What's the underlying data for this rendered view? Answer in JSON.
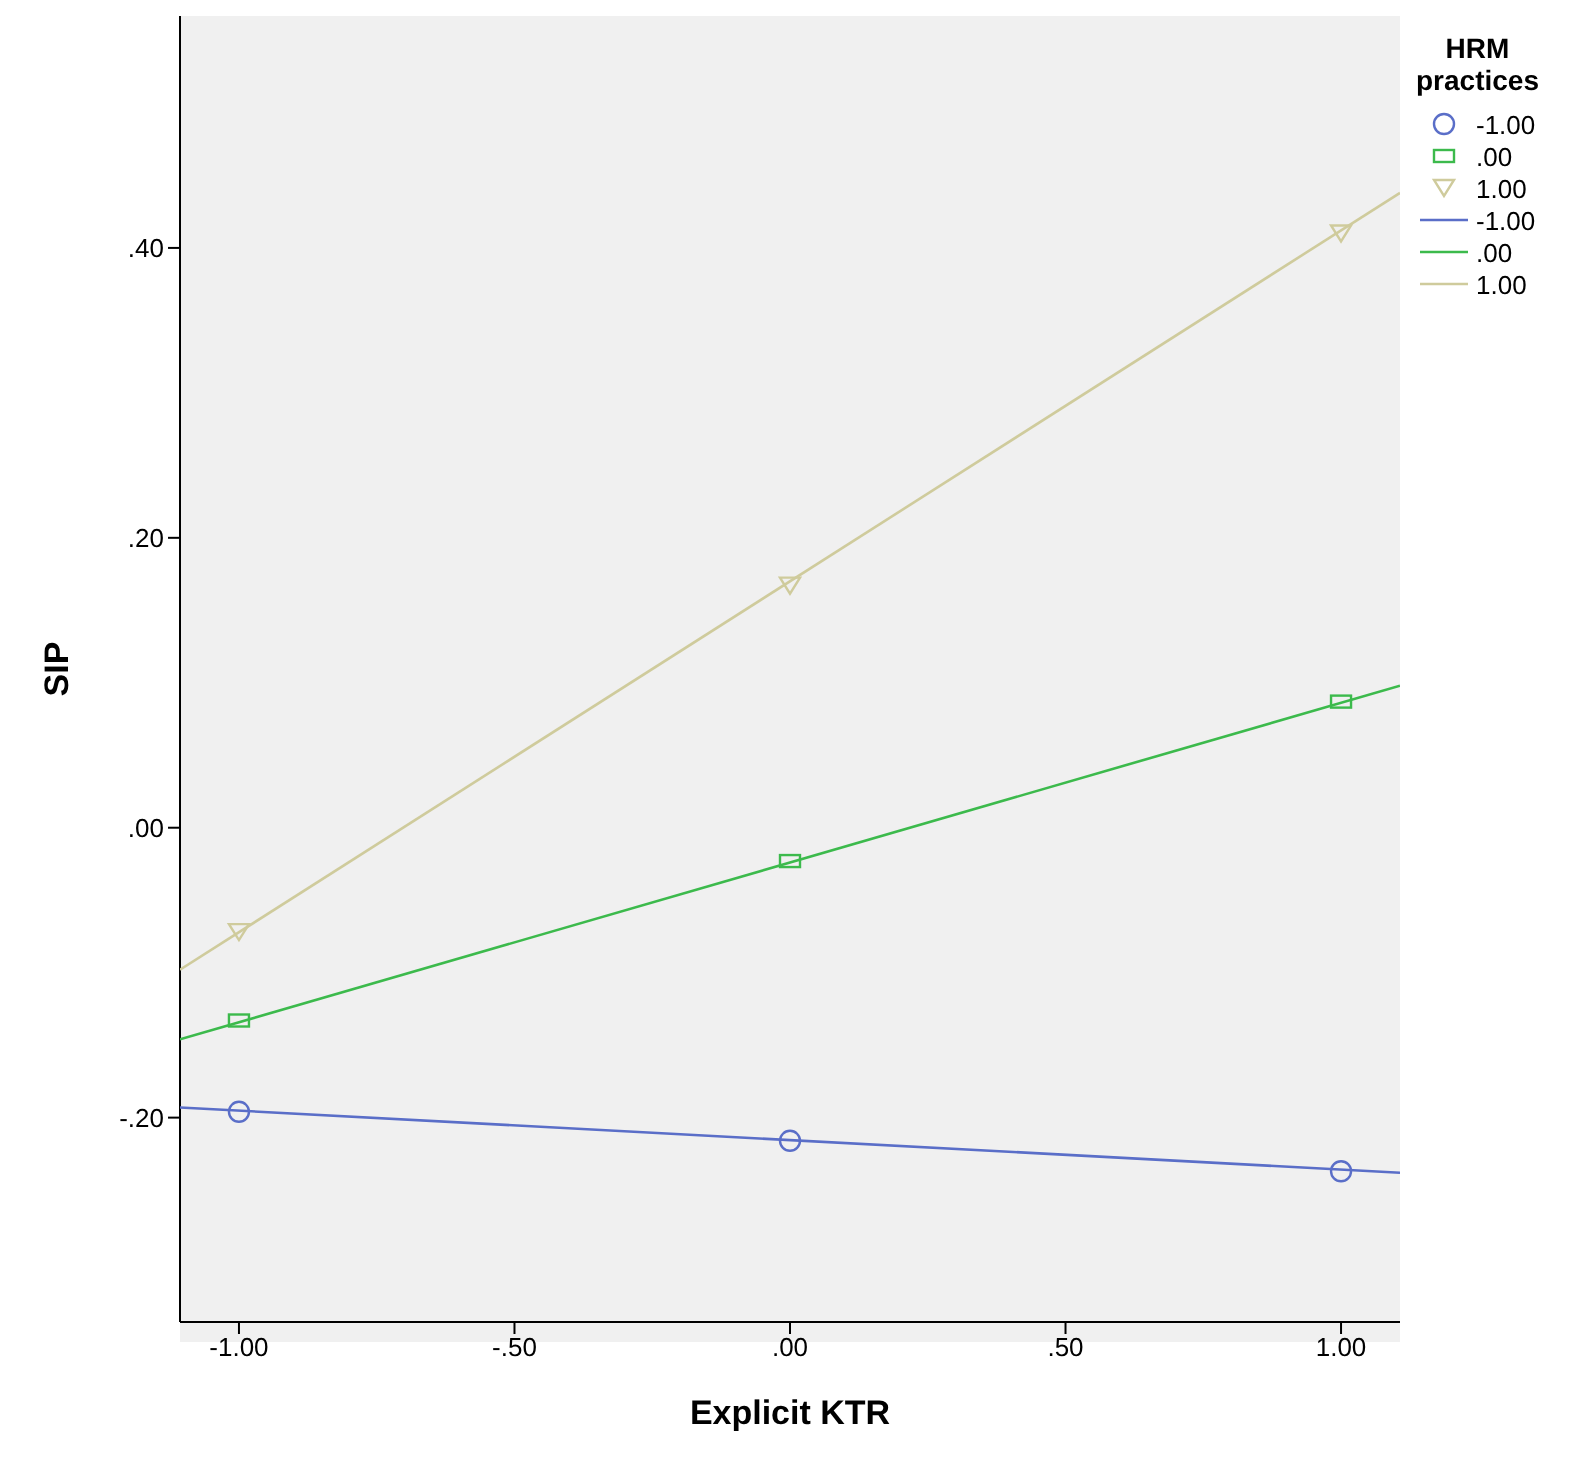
{
  "chart_data": {
    "type": "scatter",
    "xlabel": "Explicit KTR",
    "ylabel": "SIP",
    "legend_title": "HRM practices",
    "legend": "top right",
    "grid": false,
    "xlim": [
      -1.107,
      1.107
    ],
    "ylim": [
      -0.341,
      0.56
    ],
    "xticks": [
      {
        "value": -1,
        "label": "-1.00"
      },
      {
        "value": -0.5,
        "label": "-.50"
      },
      {
        "value": 0,
        "label": ".00"
      },
      {
        "value": 0.5,
        "label": ".50"
      },
      {
        "value": 1,
        "label": "1.00"
      }
    ],
    "yticks": [
      {
        "value": -0.2,
        "label": "-.20"
      },
      {
        "value": 0,
        "label": ".00"
      },
      {
        "value": 0.2,
        "label": ".20"
      },
      {
        "value": 0.4,
        "label": ".40"
      }
    ],
    "series": [
      {
        "name": "-1.00",
        "marker": "circle",
        "color": "#5a6ec8",
        "x": [
          -1,
          0,
          1
        ],
        "values": [
          -0.196,
          -0.216,
          -0.237
        ]
      },
      {
        "name": ".00",
        "marker": "square",
        "color": "#3cba4c",
        "x": [
          -1,
          0,
          1
        ],
        "values": [
          -0.133,
          -0.023,
          0.087
        ]
      },
      {
        "name": "1.00",
        "marker": "triangle",
        "color": "#cfcb9c",
        "x": [
          -1,
          0,
          1
        ],
        "values": [
          -0.072,
          0.167,
          0.41
        ]
      },
      {
        "name": "-1.00",
        "type": "line",
        "marker": "none",
        "color": "#5a6ec8",
        "x": [
          -1.107,
          1.107
        ],
        "values": [
          -0.193,
          -0.238
        ]
      },
      {
        "name": ".00",
        "type": "line",
        "marker": "none",
        "color": "#3cba4c",
        "x": [
          -1.107,
          1.107
        ],
        "values": [
          -0.146,
          0.098
        ]
      },
      {
        "name": "1.00",
        "type": "line",
        "marker": "none",
        "color": "#cfcb9c",
        "x": [
          -1.107,
          1.107
        ],
        "values": [
          -0.098,
          0.438
        ]
      }
    ]
  }
}
